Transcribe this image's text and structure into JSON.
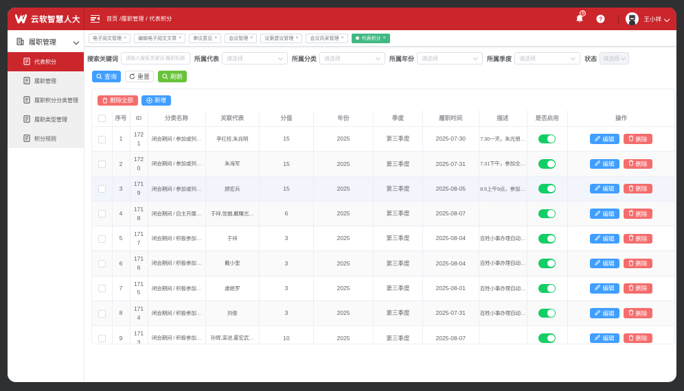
{
  "colors": {
    "header_red": "#cb262c",
    "primary_blue": "#409eff",
    "success_green": "#67c23a",
    "tag_green": "#42b983",
    "danger_red": "#f56c6c",
    "toggle_green": "#13ce66"
  },
  "app": {
    "logo_title": "云软智慧人大"
  },
  "topbar": {
    "breadcrumb": "首页 /履职管理 / 代表积分",
    "bell_badge": "5",
    "help_mark": "?",
    "username": "王小祥"
  },
  "sidebar": {
    "parent": {
      "label": "履职管理"
    },
    "items": [
      {
        "label": "代表积分",
        "active": true
      },
      {
        "label": "履职管理",
        "active": false
      },
      {
        "label": "履职积分分类管理",
        "active": false
      },
      {
        "label": "履职类型管理",
        "active": false
      },
      {
        "label": "积分规则",
        "active": false
      }
    ]
  },
  "tabs": [
    {
      "label": "电子阅文管理",
      "close": "×",
      "active": false
    },
    {
      "label": "编辑电子阅文文章",
      "close": "×",
      "active": false
    },
    {
      "label": "审议意见",
      "close": "×",
      "active": false
    },
    {
      "label": "会议管理",
      "close": "×",
      "active": false
    },
    {
      "label": "议案建议管理",
      "close": "×",
      "active": false
    },
    {
      "label": "会议风采管理",
      "close": "×",
      "active": false
    },
    {
      "label": "代表积分",
      "close": "×",
      "active": true
    }
  ],
  "filters": [
    {
      "label": "搜索关键词",
      "type": "input",
      "placeholder": "请输入搜索关键词-履职标题"
    },
    {
      "label": "所属代表",
      "type": "select",
      "placeholder": "请选择"
    },
    {
      "label": "所属分类",
      "type": "select",
      "placeholder": "请选择"
    },
    {
      "label": "所属年份",
      "type": "select",
      "placeholder": "请选择"
    },
    {
      "label": "所属季度",
      "type": "select",
      "placeholder": "请选择"
    },
    {
      "label": "状态",
      "type": "select-narrow",
      "placeholder": "请选择"
    }
  ],
  "actions": {
    "search": "查询",
    "reset": "重置",
    "refresh": "刷新"
  },
  "card_actions": {
    "delete_all": "删除全部",
    "add": "新增"
  },
  "table": {
    "headers": [
      "",
      "序号",
      "ID",
      "分类名称",
      "关联代表",
      "分值",
      "年份",
      "季度",
      "履职时间",
      "描述",
      "是否启用",
      "操作"
    ],
    "row_buttons": {
      "edit": "编辑",
      "delete": "删除"
    },
    "rows": [
      {
        "num": "1",
        "id": "1721",
        "category": "闭会期间 / 参加或列…",
        "delegates": "李红桂,朱兆明",
        "score": "15",
        "year": "2025",
        "quarter": "第三季度",
        "time": "2025-07-30",
        "desc": "7.30一天，朱光朋…",
        "enabled": true,
        "stripe": false,
        "hovered": false
      },
      {
        "num": "2",
        "id": "1720",
        "category": "闭会期间 / 参加或列…",
        "delegates": "朱海军",
        "score": "15",
        "year": "2025",
        "quarter": "第三季度",
        "time": "2025-07-31",
        "desc": "7.31下午，参加全…",
        "enabled": true,
        "stripe": true,
        "hovered": false
      },
      {
        "num": "3",
        "id": "1719",
        "category": "闭会期间 / 参加或列…",
        "delegates": "顾宏兵",
        "score": "15",
        "year": "2025",
        "quarter": "第三季度",
        "time": "2025-08-05",
        "desc": "8.5上午9点，参加…",
        "enabled": true,
        "stripe": false,
        "hovered": true
      },
      {
        "num": "4",
        "id": "1718",
        "category": "闭会期间 / 自主开展…",
        "delegates": "于祥,张娟,戴曙光…",
        "score": "6",
        "year": "2025",
        "quarter": "第三季度",
        "time": "2025-08-07",
        "desc": "",
        "enabled": true,
        "stripe": true,
        "hovered": false
      },
      {
        "num": "5",
        "id": "1717",
        "category": "闭会期间 / 积极参加…",
        "delegates": "于祥",
        "score": "3",
        "year": "2025",
        "quarter": "第三季度",
        "time": "2025-08-04",
        "desc": "百姓小事办理自动…",
        "enabled": true,
        "stripe": false,
        "hovered": false
      },
      {
        "num": "6",
        "id": "1716",
        "category": "闭会期间 / 积极参加…",
        "delegates": "戴小奎",
        "score": "3",
        "year": "2025",
        "quarter": "第三季度",
        "time": "2025-08-04",
        "desc": "百姓小事办理自动…",
        "enabled": true,
        "stripe": true,
        "hovered": false
      },
      {
        "num": "7",
        "id": "1715",
        "category": "闭会期间 / 积极参加…",
        "delegates": "虞继罗",
        "score": "3",
        "year": "2025",
        "quarter": "第三季度",
        "time": "2025-08-01",
        "desc": "百姓小事办理自动…",
        "enabled": true,
        "stripe": false,
        "hovered": false
      },
      {
        "num": "8",
        "id": "1714",
        "category": "闭会期间 / 积极参加…",
        "delegates": "刘俊",
        "score": "3",
        "year": "2025",
        "quarter": "第三季度",
        "time": "2025-07-31",
        "desc": "百姓小事办理自动…",
        "enabled": true,
        "stripe": true,
        "hovered": false
      },
      {
        "num": "9",
        "id": "1713",
        "category": "闭会期间 / 积极参加…",
        "delegates": "孙辉,栾进,霍宏武…",
        "score": "10",
        "year": "2025",
        "quarter": "第三季度",
        "time": "2025-08-07",
        "desc": "",
        "enabled": true,
        "stripe": false,
        "hovered": false
      }
    ]
  }
}
